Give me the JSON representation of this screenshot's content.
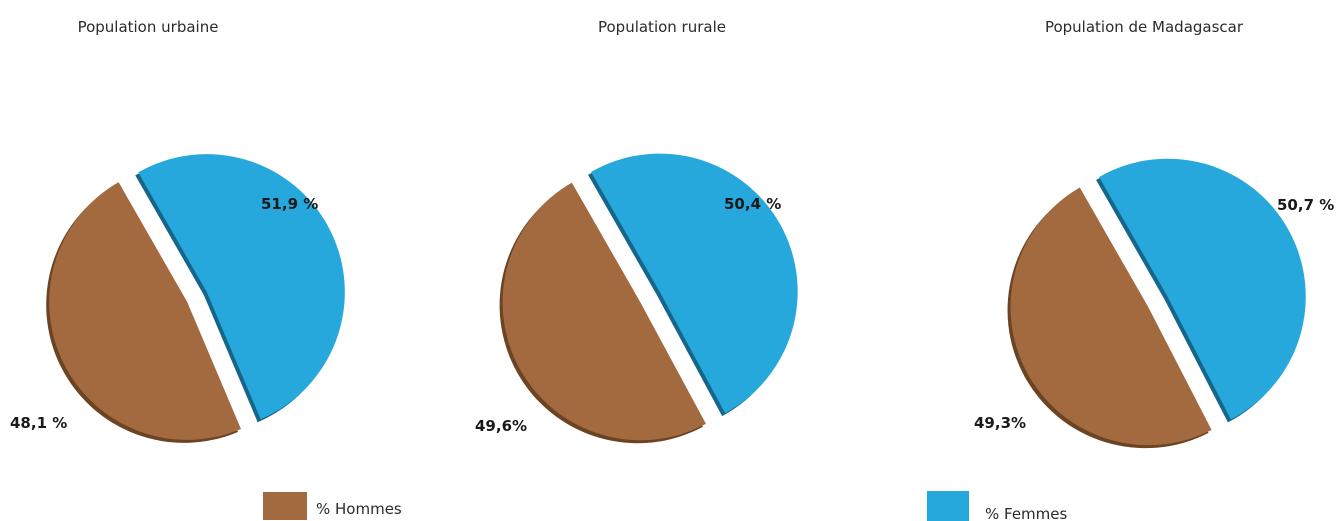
{
  "colors": {
    "hommes": "#a36a40",
    "hommes_dark": "#6b4423",
    "femmes": "#27a8dc",
    "femmes_dark": "#15668a"
  },
  "legend": {
    "hommes_label": "% Hommes",
    "femmes_label": "% Femmes"
  },
  "chart_data": [
    {
      "type": "pie",
      "title": "Population urbaine",
      "slices": [
        {
          "name": "% Hommes",
          "value": 48.1,
          "label": "48,1 %"
        },
        {
          "name": "% Femmes",
          "value": 51.9,
          "label": "51,9 %"
        }
      ]
    },
    {
      "type": "pie",
      "title": "Population rurale",
      "slices": [
        {
          "name": "% Hommes",
          "value": 49.6,
          "label": "49,6%"
        },
        {
          "name": "% Femmes",
          "value": 50.4,
          "label": "50,4 %"
        }
      ]
    },
    {
      "type": "pie",
      "title": "Population de Madagascar",
      "slices": [
        {
          "name": "% Hommes",
          "value": 49.3,
          "label": "49,3%"
        },
        {
          "name": "% Femmes",
          "value": 50.7,
          "label": "50,7 %"
        }
      ]
    }
  ]
}
